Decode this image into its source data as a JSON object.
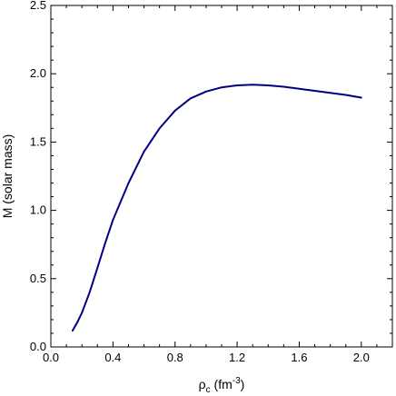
{
  "chart_data": {
    "type": "line",
    "xlabel": {
      "main": "ρ",
      "sub": "c",
      "unit_pre": " (fm",
      "unit_sup": "-3",
      "unit_post": ")"
    },
    "ylabel": "M (solar mass)",
    "xlim": [
      0.0,
      2.2
    ],
    "ylim": [
      0.0,
      2.5
    ],
    "x_ticks": [
      0.0,
      0.4,
      0.8,
      1.2,
      1.6,
      2.0
    ],
    "x_tick_labels": [
      "0.0",
      "0.4",
      "0.8",
      "1.2",
      "1.6",
      "2.0"
    ],
    "y_ticks": [
      0.0,
      0.5,
      1.0,
      1.5,
      2.0,
      2.5
    ],
    "y_tick_labels": [
      "0.0",
      "0.5",
      "1.0",
      "1.5",
      "2.0",
      "2.5"
    ],
    "x_minor_step": 0.1,
    "y_minor_step": 0.1,
    "grid": false,
    "series": [
      {
        "color": "#000080",
        "x": [
          0.14,
          0.17,
          0.2,
          0.25,
          0.3,
          0.35,
          0.4,
          0.5,
          0.6,
          0.7,
          0.8,
          0.9,
          1.0,
          1.1,
          1.2,
          1.3,
          1.4,
          1.5,
          1.6,
          1.7,
          1.8,
          1.9,
          2.0
        ],
        "y": [
          0.12,
          0.18,
          0.25,
          0.4,
          0.58,
          0.76,
          0.93,
          1.2,
          1.43,
          1.6,
          1.73,
          1.82,
          1.87,
          1.9,
          1.915,
          1.92,
          1.915,
          1.905,
          1.89,
          1.875,
          1.86,
          1.845,
          1.825
        ]
      }
    ]
  }
}
